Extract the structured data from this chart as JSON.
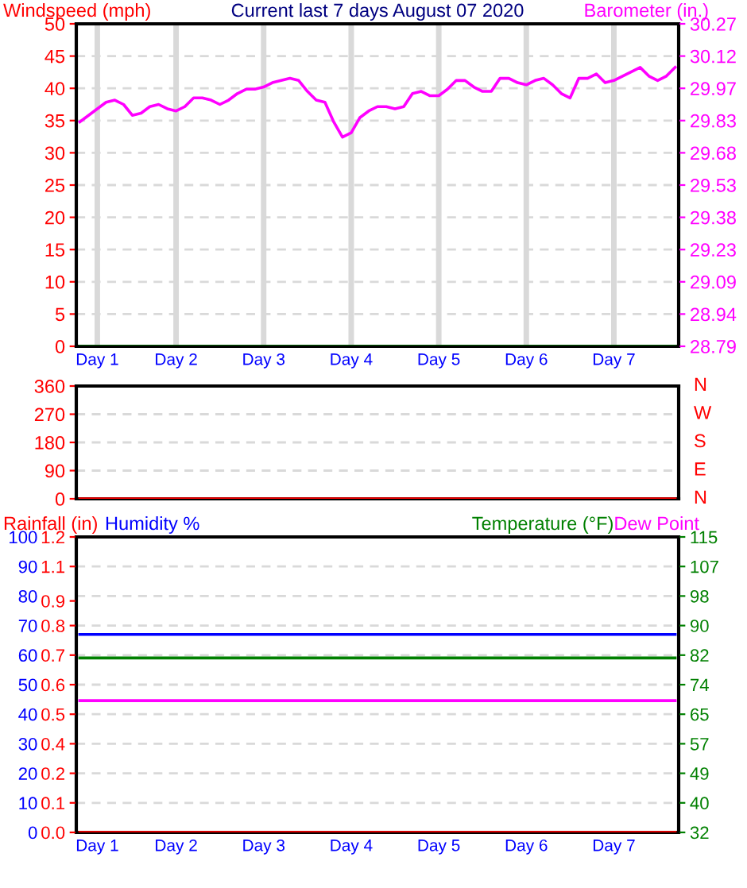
{
  "chart_data": [
    {
      "type": "line",
      "title": "Current last 7 days August 07 2020",
      "ylabel": "Windspeed (mph)",
      "y2label": "Barometer (in.)",
      "categories": [
        null,
        null,
        "Day 1",
        null,
        null,
        null,
        null,
        null,
        null,
        null,
        null,
        "Day 2",
        null,
        null,
        null,
        null,
        null,
        null,
        null,
        null,
        null,
        "Day 3",
        null,
        null,
        null,
        null,
        null,
        null,
        null,
        null,
        null,
        "Day 4",
        null,
        null,
        null,
        null,
        null,
        null,
        null,
        null,
        null,
        "Day 5",
        null,
        null,
        null,
        null,
        null,
        null,
        null,
        null,
        null,
        "Day 6",
        null,
        null,
        null,
        null,
        null,
        null,
        null,
        null,
        null,
        "Day 7",
        null,
        null,
        null,
        null,
        null,
        null,
        null
      ],
      "ylim": [
        0,
        50
      ],
      "yticks": [
        0,
        5,
        10,
        15,
        20,
        25,
        30,
        35,
        40,
        45,
        50
      ],
      "y2lim": [
        28.79,
        30.27
      ],
      "y2ticks": [
        {
          "value": 28.79,
          "label": "28.79"
        },
        {
          "value": 28.938,
          "label": "28.94"
        },
        {
          "value": 29.086,
          "label": "29.09"
        },
        {
          "value": 29.234,
          "label": "29.23"
        },
        {
          "value": 29.382,
          "label": "29.38"
        },
        {
          "value": 29.53,
          "label": "29.53"
        },
        {
          "value": 29.678,
          "label": "29.68"
        },
        {
          "value": 29.826,
          "label": "29.83"
        },
        {
          "value": 29.974,
          "label": "29.97"
        },
        {
          "value": 30.122,
          "label": "30.12"
        },
        {
          "value": 30.27,
          "label": "30.27"
        }
      ],
      "grid": true,
      "series": [
        {
          "color": "#008000",
          "values": [
            0,
            0,
            0,
            0,
            0,
            0,
            0,
            0,
            0,
            0,
            0,
            0,
            0,
            0,
            0,
            0,
            0,
            0,
            0,
            0,
            0,
            0,
            0,
            0,
            0,
            0,
            0,
            0,
            0,
            0,
            0,
            0,
            0,
            0,
            0,
            0,
            0,
            0,
            0,
            0,
            0,
            0,
            0,
            0,
            0,
            0,
            0,
            0,
            0,
            0,
            0,
            0,
            0,
            0,
            0,
            0,
            0,
            0,
            0,
            0,
            0,
            0,
            0,
            0,
            0,
            0,
            0,
            0,
            0
          ]
        },
        {
          "color": "#ff00ff",
          "axis": "y2",
          "values": [
            29.82,
            29.85,
            29.88,
            29.91,
            29.92,
            29.9,
            29.85,
            29.86,
            29.89,
            29.9,
            29.88,
            29.87,
            29.89,
            29.93,
            29.93,
            29.92,
            29.9,
            29.92,
            29.95,
            29.97,
            29.97,
            29.98,
            30.0,
            30.01,
            30.02,
            30.01,
            29.96,
            29.92,
            29.91,
            29.82,
            29.75,
            29.77,
            29.84,
            29.87,
            29.89,
            29.89,
            29.88,
            29.89,
            29.95,
            29.96,
            29.94,
            29.94,
            29.97,
            30.01,
            30.01,
            29.98,
            29.96,
            29.96,
            30.02,
            30.02,
            30.0,
            29.99,
            30.01,
            30.02,
            29.99,
            29.95,
            29.93,
            30.02,
            30.02,
            30.04,
            30.0,
            30.01,
            30.03,
            30.05,
            30.07,
            30.03,
            30.01,
            30.03,
            30.07
          ]
        }
      ]
    },
    {
      "type": "line",
      "categories": [
        null,
        null,
        null,
        null,
        null,
        null,
        null,
        null,
        null,
        null,
        null,
        null,
        null,
        null,
        null,
        null,
        null,
        null,
        null,
        null,
        null,
        null,
        null,
        null,
        null,
        null,
        null,
        null,
        null,
        null,
        null,
        null,
        null,
        null,
        null,
        null,
        null,
        null,
        null,
        null,
        null,
        null,
        null,
        null,
        null,
        null,
        null,
        null,
        null,
        null,
        null,
        null,
        null,
        null,
        null,
        null,
        null,
        null,
        null,
        null,
        null,
        null,
        null,
        null,
        null,
        null,
        null,
        null,
        null
      ],
      "ylim": [
        0,
        360
      ],
      "yticks": [
        0,
        90,
        180,
        270,
        360
      ],
      "tick_labels": "y",
      "grid": "y",
      "annotations": [
        "N",
        "E",
        "S",
        "W",
        "N"
      ],
      "series": [
        {
          "color": "#ff0000",
          "values": [
            0,
            0,
            0,
            0,
            0,
            0,
            0,
            0,
            0,
            0,
            0,
            0,
            0,
            0,
            0,
            0,
            0,
            0,
            0,
            0,
            0,
            0,
            0,
            0,
            0,
            0,
            0,
            0,
            0,
            0,
            0,
            0,
            0,
            0,
            0,
            0,
            0,
            0,
            0,
            0,
            0,
            0,
            0,
            0,
            0,
            0,
            0,
            0,
            0,
            0,
            0,
            0,
            0,
            0,
            0,
            0,
            0,
            0,
            0,
            0,
            0,
            0,
            0,
            0,
            0,
            0,
            0,
            0,
            0
          ]
        }
      ]
    },
    {
      "type": "line",
      "ylabel": "Humidity %",
      "y2label": "Temperature (°F)",
      "y3label": "Rainfall (in)",
      "categories": [
        null,
        null,
        "Day 1",
        null,
        null,
        null,
        null,
        null,
        null,
        null,
        null,
        "Day 2",
        null,
        null,
        null,
        null,
        null,
        null,
        null,
        null,
        null,
        "Day 3",
        null,
        null,
        null,
        null,
        null,
        null,
        null,
        null,
        null,
        "Day 4",
        null,
        null,
        null,
        null,
        null,
        null,
        null,
        null,
        null,
        "Day 5",
        null,
        null,
        null,
        null,
        null,
        null,
        null,
        null,
        null,
        "Day 6",
        null,
        null,
        null,
        null,
        null,
        null,
        null,
        null,
        null,
        "Day 7",
        null,
        null,
        null,
        null,
        null,
        null,
        null
      ],
      "ylim": [
        0,
        100
      ],
      "yticks": [
        0,
        10,
        20,
        30,
        40,
        50,
        60,
        70,
        80,
        90,
        100
      ],
      "y2lim": [
        32,
        115
      ],
      "y2ticks": [
        {
          "value": 32,
          "label": "32"
        },
        {
          "value": 40.3,
          "label": "40"
        },
        {
          "value": 48.6,
          "label": "49"
        },
        {
          "value": 56.9,
          "label": "57"
        },
        {
          "value": 65.2,
          "label": "65"
        },
        {
          "value": 73.5,
          "label": "74"
        },
        {
          "value": 81.8,
          "label": "82"
        },
        {
          "value": 90.1,
          "label": "90"
        },
        {
          "value": 98.4,
          "label": "98"
        },
        {
          "value": 106.7,
          "label": "107"
        },
        {
          "value": 115,
          "label": "115"
        }
      ],
      "y3lim": [
        0,
        1.2
      ],
      "y3ticks": [
        {
          "value": 0,
          "label": "0.0"
        },
        {
          "value": 0.12,
          "label": "0.1"
        },
        {
          "value": 0.24,
          "label": "0.2"
        },
        {
          "value": 0.36,
          "label": "0.4"
        },
        {
          "value": 0.48,
          "label": "0.5"
        },
        {
          "value": 0.6,
          "label": "0.6"
        },
        {
          "value": 0.72,
          "label": "0.7"
        },
        {
          "value": 0.84,
          "label": "0.8"
        },
        {
          "value": 0.94,
          "label": "0.9"
        },
        {
          "value": 1.08,
          "label": "1.1"
        },
        {
          "value": 1.2,
          "label": "1.2"
        }
      ],
      "grid": "y",
      "series": [
        {
          "color": "#0000ff",
          "values": [
            67,
            67,
            67,
            67,
            67,
            67,
            67,
            67,
            67,
            67,
            67,
            67,
            67,
            67,
            67,
            67,
            67,
            67,
            67,
            67,
            67,
            67,
            67,
            67,
            67,
            67,
            67,
            67,
            67,
            67,
            67,
            67,
            67,
            67,
            67,
            67,
            67,
            67,
            67,
            67,
            67,
            67,
            67,
            67,
            67,
            67,
            67,
            67,
            67,
            67,
            67,
            67,
            67,
            67,
            67,
            67,
            67,
            67,
            67,
            67,
            67,
            67,
            67,
            67,
            67,
            67,
            67,
            67,
            67
          ]
        },
        {
          "color": "#008000",
          "axis": "y2",
          "values": [
            81,
            81,
            81,
            81,
            81,
            81,
            81,
            81,
            81,
            81,
            81,
            81,
            81,
            81,
            81,
            81,
            81,
            81,
            81,
            81,
            81,
            81,
            81,
            81,
            81,
            81,
            81,
            81,
            81,
            81,
            81,
            81,
            81,
            81,
            81,
            81,
            81,
            81,
            81,
            81,
            81,
            81,
            81,
            81,
            81,
            81,
            81,
            81,
            81,
            81,
            81,
            81,
            81,
            81,
            81,
            81,
            81,
            81,
            81,
            81,
            81,
            81,
            81,
            81,
            81,
            81,
            81,
            81,
            81
          ]
        },
        {
          "name": "Dew Point",
          "color": "#ff00ff",
          "axis": "y2",
          "values": [
            69,
            69,
            69,
            69,
            69,
            69,
            69,
            69,
            69,
            69,
            69,
            69,
            69,
            69,
            69,
            69,
            69,
            69,
            69,
            69,
            69,
            69,
            69,
            69,
            69,
            69,
            69,
            69,
            69,
            69,
            69,
            69,
            69,
            69,
            69,
            69,
            69,
            69,
            69,
            69,
            69,
            69,
            69,
            69,
            69,
            69,
            69,
            69,
            69,
            69,
            69,
            69,
            69,
            69,
            69,
            69,
            69,
            69,
            69,
            69,
            69,
            69,
            69,
            69,
            69,
            69,
            69,
            69,
            69
          ]
        },
        {
          "color": "#ff0000",
          "axis": "y3",
          "values": [
            0,
            0,
            0,
            0,
            0,
            0,
            0,
            0,
            0,
            0,
            0,
            0,
            0,
            0,
            0,
            0,
            0,
            0,
            0,
            0,
            0,
            0,
            0,
            0,
            0,
            0,
            0,
            0,
            0,
            0,
            0,
            0,
            0,
            0,
            0,
            0,
            0,
            0,
            0,
            0,
            0,
            0,
            0,
            0,
            0,
            0,
            0,
            0,
            0,
            0,
            0,
            0,
            0,
            0,
            0,
            0,
            0,
            0,
            0,
            0,
            0,
            0,
            0,
            0,
            0,
            0,
            0,
            0,
            0
          ]
        }
      ]
    }
  ]
}
